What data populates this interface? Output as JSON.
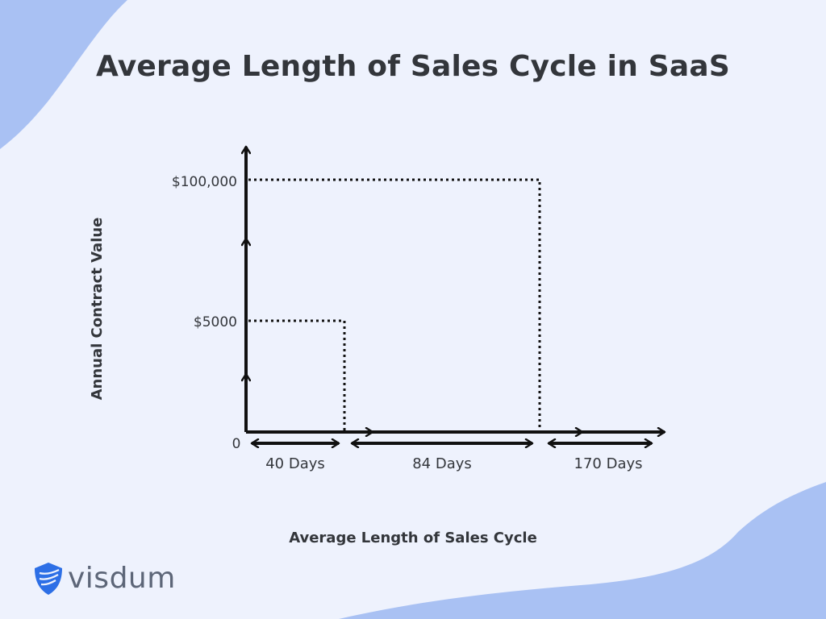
{
  "title": "Average Length of Sales Cycle in SaaS",
  "brand": {
    "name": "visdum",
    "accent": "#2d6fe6",
    "wave_color": "#a9c1f3"
  },
  "chart_data": {
    "type": "line",
    "title": "Average Length of Sales Cycle in SaaS",
    "xlabel": "Average Length of Sales Cycle",
    "ylabel": "Annual Contract Value",
    "y_ticks": [
      "0",
      "$5000",
      "$100,000"
    ],
    "segments": [
      {
        "label": "40 Days",
        "days": 40
      },
      {
        "label": "84 Days",
        "days": 84
      },
      {
        "label": "170 Days",
        "days": 170
      }
    ],
    "points": [
      {
        "acv": "$5000",
        "days": 40
      },
      {
        "acv": "$100,000",
        "days": 84
      }
    ],
    "grid": false
  }
}
